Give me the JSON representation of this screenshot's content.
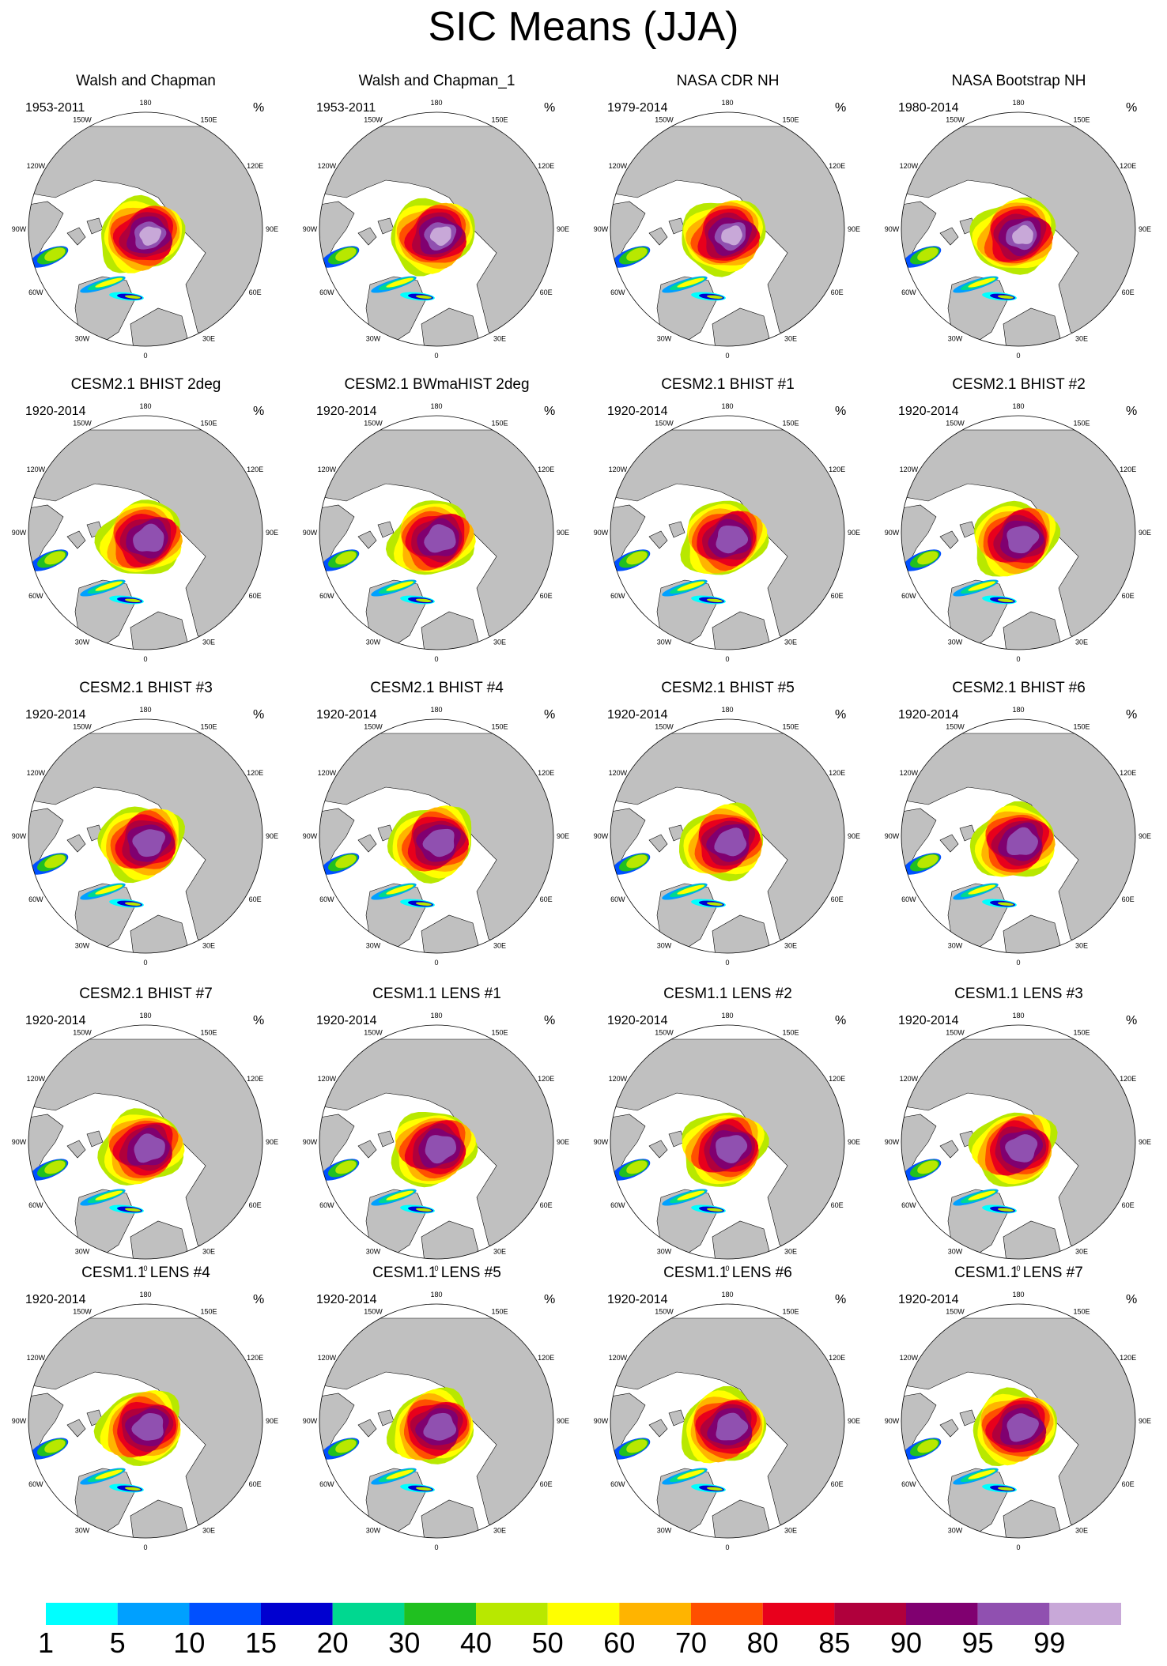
{
  "title": "SIC Means (JJA)",
  "longitude_labels": [
    "180",
    "150E",
    "120E",
    "90E",
    "60E",
    "30E",
    "0",
    "30W",
    "60W",
    "90W",
    "120W",
    "150W"
  ],
  "panels": [
    {
      "title": "Walsh and Chapman",
      "period": "1953-2011",
      "unit": "%"
    },
    {
      "title": "Walsh and Chapman_1",
      "period": "1953-2011",
      "unit": "%"
    },
    {
      "title": "NASA CDR NH",
      "period": "1979-2014",
      "unit": "%"
    },
    {
      "title": "NASA Bootstrap NH",
      "period": "1980-2014",
      "unit": "%"
    },
    {
      "title": "CESM2.1 BHIST 2deg",
      "period": "1920-2014",
      "unit": "%"
    },
    {
      "title": "CESM2.1 BWmaHIST 2deg",
      "period": "1920-2014",
      "unit": "%"
    },
    {
      "title": "CESM2.1 BHIST #1",
      "period": "1920-2014",
      "unit": "%"
    },
    {
      "title": "CESM2.1 BHIST #2",
      "period": "1920-2014",
      "unit": "%"
    },
    {
      "title": "CESM2.1 BHIST #3",
      "period": "1920-2014",
      "unit": "%"
    },
    {
      "title": "CESM2.1 BHIST #4",
      "period": "1920-2014",
      "unit": "%"
    },
    {
      "title": "CESM2.1 BHIST #5",
      "period": "1920-2014",
      "unit": "%"
    },
    {
      "title": "CESM2.1 BHIST #6",
      "period": "1920-2014",
      "unit": "%"
    },
    {
      "title": "CESM2.1 BHIST #7",
      "period": "1920-2014",
      "unit": "%"
    },
    {
      "title": "CESM1.1 LENS #1",
      "period": "1920-2014",
      "unit": "%"
    },
    {
      "title": "CESM1.1 LENS #2",
      "period": "1920-2014",
      "unit": "%"
    },
    {
      "title": "CESM1.1 LENS #3",
      "period": "1920-2014",
      "unit": "%"
    },
    {
      "title": "CESM1.1 LENS #4",
      "period": "1920-2014",
      "unit": "%"
    },
    {
      "title": "CESM1.1 LENS #5",
      "period": "1920-2014",
      "unit": "%"
    },
    {
      "title": "CESM1.1 LENS #6",
      "period": "1920-2014",
      "unit": "%"
    },
    {
      "title": "CESM1.1 LENS #7",
      "period": "1920-2014",
      "unit": "%"
    }
  ],
  "colorbar": {
    "labels": [
      "1",
      "5",
      "10",
      "15",
      "20",
      "30",
      "40",
      "50",
      "60",
      "70",
      "80",
      "85",
      "90",
      "95",
      "99"
    ],
    "colors": [
      "#00ffff",
      "#00a0ff",
      "#0050ff",
      "#0000d0",
      "#00d890",
      "#20c020",
      "#b8e800",
      "#ffff00",
      "#ffb400",
      "#ff5000",
      "#e8001c",
      "#b0003c",
      "#800070",
      "#9050b0",
      "#c8a8d8"
    ]
  },
  "colors": {
    "land": "#c0c0c0",
    "ocean": "#ffffff",
    "coast": "#000000"
  }
}
